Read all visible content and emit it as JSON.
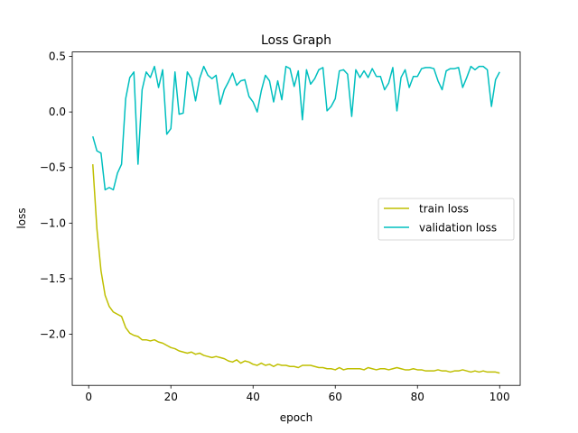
{
  "chart_data": {
    "type": "line",
    "title": "Loss Graph",
    "xlabel": "epoch",
    "ylabel": "loss",
    "xlim": [
      -4,
      105
    ],
    "ylim": [
      -2.46,
      0.54
    ],
    "xticks": [
      0,
      20,
      40,
      60,
      80,
      100
    ],
    "yticks": [
      0.5,
      0.0,
      -0.5,
      -1.0,
      -1.5,
      -2.0
    ],
    "ytick_labels": [
      "0.5",
      "0.0",
      "−0.5",
      "−1.0",
      "−1.5",
      "−2.0"
    ],
    "xtick_labels": [
      "0",
      "20",
      "40",
      "60",
      "80",
      "100"
    ],
    "grid": false,
    "legend_position": "center-right",
    "series": [
      {
        "name": "train loss",
        "color": "#bfbf00",
        "x": [
          1,
          2,
          3,
          4,
          5,
          6,
          7,
          8,
          9,
          10,
          11,
          12,
          13,
          14,
          15,
          16,
          17,
          18,
          19,
          20,
          21,
          22,
          23,
          24,
          25,
          26,
          27,
          28,
          29,
          30,
          31,
          32,
          33,
          34,
          35,
          36,
          37,
          38,
          39,
          40,
          41,
          42,
          43,
          44,
          45,
          46,
          47,
          48,
          49,
          50,
          51,
          52,
          53,
          54,
          55,
          56,
          57,
          58,
          59,
          60,
          61,
          62,
          63,
          64,
          65,
          66,
          67,
          68,
          69,
          70,
          71,
          72,
          73,
          74,
          75,
          76,
          77,
          78,
          79,
          80,
          81,
          82,
          83,
          84,
          85,
          86,
          87,
          88,
          89,
          90,
          91,
          92,
          93,
          94,
          95,
          96,
          97,
          98,
          99,
          100
        ],
        "values": [
          -0.47,
          -1.05,
          -1.43,
          -1.65,
          -1.75,
          -1.8,
          -1.82,
          -1.84,
          -1.94,
          -1.99,
          -2.01,
          -2.02,
          -2.05,
          -2.05,
          -2.06,
          -2.05,
          -2.07,
          -2.08,
          -2.1,
          -2.12,
          -2.13,
          -2.15,
          -2.16,
          -2.17,
          -2.16,
          -2.18,
          -2.17,
          -2.19,
          -2.2,
          -2.21,
          -2.2,
          -2.21,
          -2.22,
          -2.24,
          -2.25,
          -2.23,
          -2.26,
          -2.24,
          -2.25,
          -2.27,
          -2.28,
          -2.26,
          -2.28,
          -2.27,
          -2.29,
          -2.27,
          -2.28,
          -2.28,
          -2.29,
          -2.29,
          -2.3,
          -2.28,
          -2.28,
          -2.28,
          -2.29,
          -2.3,
          -2.3,
          -2.31,
          -2.31,
          -2.32,
          -2.3,
          -2.32,
          -2.31,
          -2.31,
          -2.31,
          -2.31,
          -2.32,
          -2.3,
          -2.31,
          -2.32,
          -2.31,
          -2.31,
          -2.32,
          -2.31,
          -2.3,
          -2.31,
          -2.32,
          -2.32,
          -2.31,
          -2.32,
          -2.32,
          -2.33,
          -2.33,
          -2.33,
          -2.32,
          -2.33,
          -2.33,
          -2.34,
          -2.33,
          -2.33,
          -2.32,
          -2.33,
          -2.34,
          -2.33,
          -2.34,
          -2.33,
          -2.34,
          -2.34,
          -2.34,
          -2.35
        ]
      },
      {
        "name": "validation loss",
        "color": "#00bfbf",
        "x": [
          1,
          2,
          3,
          4,
          5,
          6,
          7,
          8,
          9,
          10,
          11,
          12,
          13,
          14,
          15,
          16,
          17,
          18,
          19,
          20,
          21,
          22,
          23,
          24,
          25,
          26,
          27,
          28,
          29,
          30,
          31,
          32,
          33,
          34,
          35,
          36,
          37,
          38,
          39,
          40,
          41,
          42,
          43,
          44,
          45,
          46,
          47,
          48,
          49,
          50,
          51,
          52,
          53,
          54,
          55,
          56,
          57,
          58,
          59,
          60,
          61,
          62,
          63,
          64,
          65,
          66,
          67,
          68,
          69,
          70,
          71,
          72,
          73,
          74,
          75,
          76,
          77,
          78,
          79,
          80,
          81,
          82,
          83,
          84,
          85,
          86,
          87,
          88,
          89,
          90,
          91,
          92,
          93,
          94,
          95,
          96,
          97,
          98,
          99,
          100
        ],
        "values": [
          -0.22,
          -0.35,
          -0.37,
          -0.7,
          -0.68,
          -0.7,
          -0.55,
          -0.47,
          0.12,
          0.31,
          0.36,
          -0.47,
          0.2,
          0.36,
          0.31,
          0.41,
          0.22,
          0.38,
          -0.2,
          -0.15,
          0.36,
          -0.02,
          -0.01,
          0.36,
          0.3,
          0.1,
          0.3,
          0.41,
          0.33,
          0.3,
          0.33,
          0.07,
          0.2,
          0.27,
          0.35,
          0.24,
          0.28,
          0.29,
          0.14,
          0.09,
          0.0,
          0.19,
          0.33,
          0.28,
          0.09,
          0.28,
          0.11,
          0.41,
          0.39,
          0.23,
          0.37,
          -0.07,
          0.38,
          0.25,
          0.3,
          0.38,
          0.4,
          0.01,
          0.05,
          0.12,
          0.37,
          0.38,
          0.34,
          -0.04,
          0.38,
          0.31,
          0.37,
          0.31,
          0.39,
          0.32,
          0.32,
          0.2,
          0.26,
          0.4,
          0.01,
          0.31,
          0.38,
          0.22,
          0.32,
          0.32,
          0.39,
          0.4,
          0.4,
          0.39,
          0.28,
          0.2,
          0.37,
          0.39,
          0.39,
          0.4,
          0.22,
          0.31,
          0.41,
          0.38,
          0.41,
          0.41,
          0.38,
          0.05,
          0.29,
          0.36
        ]
      }
    ]
  }
}
